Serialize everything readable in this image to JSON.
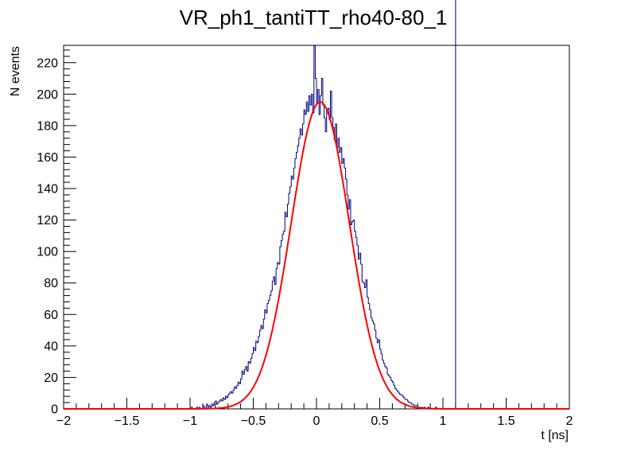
{
  "chart_data": {
    "type": "histogram",
    "title": "VR_ph1_tantiTT_rho40-80_1",
    "xlabel": "t [ns]",
    "ylabel": "N events",
    "xlim": [
      -2,
      2
    ],
    "ylim": [
      0,
      231
    ],
    "x_ticks": [
      -2,
      -1.5,
      -1,
      -0.5,
      0,
      0.5,
      1,
      1.5,
      2
    ],
    "x_tick_labels": [
      "−2",
      "−1.5",
      "−1",
      "−0.5",
      "0",
      "0.5",
      "1",
      "1.5",
      "2"
    ],
    "y_ticks": [
      0,
      20,
      40,
      60,
      80,
      100,
      120,
      140,
      160,
      180,
      200,
      220
    ],
    "y_tick_labels": [
      "0",
      "20",
      "40",
      "60",
      "80",
      "100",
      "120",
      "140",
      "160",
      "180",
      "200",
      "220"
    ],
    "grid": false,
    "legend": false,
    "histogram": {
      "color": "#000080",
      "bin_width": 0.01,
      "bin_centers": [
        -0.995,
        -0.985,
        -0.975,
        -0.965,
        -0.955,
        -0.945,
        -0.935,
        -0.925,
        -0.915,
        -0.905,
        -0.895,
        -0.885,
        -0.875,
        -0.865,
        -0.855,
        -0.845,
        -0.835,
        -0.825,
        -0.815,
        -0.805,
        -0.795,
        -0.785,
        -0.775,
        -0.765,
        -0.755,
        -0.745,
        -0.735,
        -0.725,
        -0.715,
        -0.705,
        -0.695,
        -0.685,
        -0.675,
        -0.665,
        -0.655,
        -0.645,
        -0.635,
        -0.625,
        -0.615,
        -0.605,
        -0.595,
        -0.585,
        -0.575,
        -0.565,
        -0.555,
        -0.545,
        -0.535,
        -0.525,
        -0.515,
        -0.505,
        -0.495,
        -0.485,
        -0.475,
        -0.465,
        -0.455,
        -0.445,
        -0.435,
        -0.425,
        -0.415,
        -0.405,
        -0.395,
        -0.385,
        -0.375,
        -0.365,
        -0.355,
        -0.345,
        -0.335,
        -0.325,
        -0.315,
        -0.305,
        -0.295,
        -0.285,
        -0.275,
        -0.265,
        -0.255,
        -0.245,
        -0.235,
        -0.225,
        -0.215,
        -0.205,
        -0.195,
        -0.185,
        -0.175,
        -0.165,
        -0.155,
        -0.145,
        -0.135,
        -0.125,
        -0.115,
        -0.105,
        -0.095,
        -0.085,
        -0.075,
        -0.065,
        -0.055,
        -0.045,
        -0.035,
        -0.025,
        -0.015,
        -0.005,
        0.005,
        0.015,
        0.025,
        0.035,
        0.045,
        0.055,
        0.065,
        0.075,
        0.085,
        0.095,
        0.105,
        0.115,
        0.125,
        0.135,
        0.145,
        0.155,
        0.165,
        0.175,
        0.185,
        0.195,
        0.205,
        0.215,
        0.225,
        0.235,
        0.245,
        0.255,
        0.265,
        0.275,
        0.285,
        0.295,
        0.305,
        0.315,
        0.325,
        0.335,
        0.345,
        0.355,
        0.365,
        0.375,
        0.385,
        0.395,
        0.405,
        0.415,
        0.425,
        0.435,
        0.445,
        0.455,
        0.465,
        0.475,
        0.485,
        0.495,
        0.505,
        0.515,
        0.525,
        0.535,
        0.545,
        0.555,
        0.565,
        0.575,
        0.585,
        0.595,
        0.605,
        0.615,
        0.625,
        0.635,
        0.645,
        0.655,
        0.665,
        0.675,
        0.685,
        0.695,
        0.705,
        0.715,
        0.725,
        0.735,
        0.745,
        0.755,
        0.765,
        0.775,
        0.785,
        0.795,
        0.805,
        0.815,
        0.825,
        0.835,
        0.845,
        0.855,
        0.865,
        0.875,
        0.885,
        0.895,
        0.905,
        0.915,
        0.925,
        0.935,
        0.945,
        0.955,
        0.965,
        0.975,
        0.985,
        0.995,
        1.005,
        1.015,
        1.025,
        1.035,
        1.045,
        1.055,
        1.065,
        1.075,
        1.085,
        1.095
      ],
      "counts": [
        0,
        1,
        0,
        0,
        0,
        1,
        0,
        1,
        0,
        0,
        2,
        1,
        1,
        3,
        1,
        2,
        1,
        3,
        2,
        4,
        5,
        3,
        4,
        5,
        6,
        5,
        7,
        6,
        8,
        7,
        9,
        10,
        11,
        10,
        12,
        14,
        13,
        15,
        17,
        16,
        19,
        24,
        22,
        25,
        27,
        24,
        30,
        29,
        32,
        35,
        39,
        37,
        43,
        42,
        46,
        50,
        53,
        51,
        57,
        63,
        61,
        67,
        69,
        72,
        75,
        81,
        84,
        79,
        89,
        93,
        92,
        103,
        107,
        111,
        113,
        125,
        122,
        130,
        137,
        141,
        148,
        146,
        153,
        159,
        163,
        167,
        172,
        178,
        174,
        181,
        190,
        187,
        195,
        189,
        199,
        193,
        200,
        188,
        231,
        210,
        194,
        203,
        187,
        199,
        210,
        193,
        185,
        176,
        190,
        191,
        184,
        202,
        185,
        179,
        171,
        181,
        166,
        172,
        163,
        166,
        156,
        159,
        153,
        146,
        136,
        127,
        133,
        117,
        119,
        120,
        113,
        109,
        104,
        95,
        99,
        92,
        81,
        80,
        77,
        82,
        71,
        67,
        63,
        58,
        56,
        54,
        50,
        45,
        42,
        44,
        38,
        35,
        31,
        29,
        27,
        26,
        22,
        21,
        20,
        18,
        17,
        15,
        13,
        12,
        11,
        10,
        9,
        9,
        8,
        7,
        6,
        6,
        5,
        4,
        4,
        3,
        3,
        2,
        2,
        2,
        1,
        1,
        1,
        1,
        0,
        1,
        0,
        0,
        1,
        0,
        0,
        0,
        0,
        0,
        1,
        0,
        0,
        0,
        0,
        0,
        0
      ]
    },
    "fit": {
      "type": "gaussian",
      "color": "#ff0000",
      "amplitude": 195,
      "mean": 0.03,
      "sigma": 0.23
    }
  }
}
